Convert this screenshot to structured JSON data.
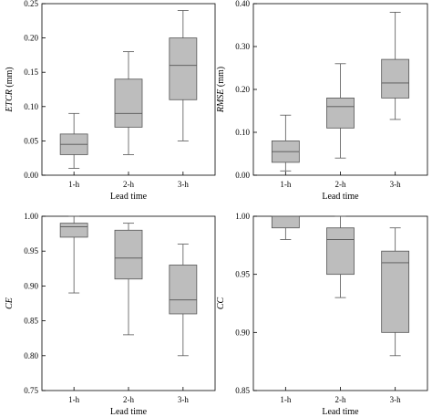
{
  "chart_data": [
    {
      "type": "box",
      "ylabel": "ETCR (mm)",
      "xlabel": "Lead time",
      "ylim": [
        0,
        0.25
      ],
      "yticks": [
        0,
        0.05,
        0.1,
        0.15,
        0.2,
        0.25
      ],
      "ytick_labels": [
        "0.00",
        "0.05",
        "0.10",
        "0.15",
        "0.20",
        "0.25"
      ],
      "categories": [
        "1-h",
        "2-h",
        "3-h"
      ],
      "boxes": [
        {
          "min": 0.01,
          "q1": 0.03,
          "median": 0.045,
          "q3": 0.06,
          "max": 0.09
        },
        {
          "min": 0.03,
          "q1": 0.07,
          "median": 0.09,
          "q3": 0.14,
          "max": 0.18
        },
        {
          "min": 0.05,
          "q1": 0.11,
          "median": 0.16,
          "q3": 0.2,
          "max": 0.24
        }
      ]
    },
    {
      "type": "box",
      "ylabel": "RMSE (mm)",
      "xlabel": "Lead time",
      "ylim": [
        0,
        0.4
      ],
      "yticks": [
        0,
        0.1,
        0.2,
        0.3,
        0.4
      ],
      "ytick_labels": [
        "0.00",
        "0.10",
        "0.20",
        "0.30",
        "0.40"
      ],
      "categories": [
        "1-h",
        "2-h",
        "3-h"
      ],
      "boxes": [
        {
          "min": 0.01,
          "q1": 0.03,
          "median": 0.055,
          "q3": 0.08,
          "max": 0.14
        },
        {
          "min": 0.04,
          "q1": 0.11,
          "median": 0.16,
          "q3": 0.18,
          "max": 0.26
        },
        {
          "min": 0.13,
          "q1": 0.18,
          "median": 0.215,
          "q3": 0.27,
          "max": 0.38
        }
      ]
    },
    {
      "type": "box",
      "ylabel": "CE",
      "xlabel": "Lead time",
      "ylim": [
        0.75,
        1.0
      ],
      "yticks": [
        0.75,
        0.8,
        0.85,
        0.9,
        0.95,
        1.0
      ],
      "ytick_labels": [
        "0.75",
        "0.80",
        "0.85",
        "0.90",
        "0.95",
        "1.00"
      ],
      "categories": [
        "1-h",
        "2-h",
        "3-h"
      ],
      "boxes": [
        {
          "min": 0.89,
          "q1": 0.97,
          "median": 0.985,
          "q3": 0.99,
          "max": 1.0
        },
        {
          "min": 0.83,
          "q1": 0.91,
          "median": 0.94,
          "q3": 0.98,
          "max": 0.99
        },
        {
          "min": 0.8,
          "q1": 0.86,
          "median": 0.88,
          "q3": 0.93,
          "max": 0.96
        }
      ]
    },
    {
      "type": "box",
      "ylabel": "CC",
      "xlabel": "Lead time",
      "ylim": [
        0.85,
        1.0
      ],
      "yticks": [
        0.85,
        0.9,
        0.95,
        1.0
      ],
      "ytick_labels": [
        "0.85",
        "0.90",
        "0.95",
        "1.00"
      ],
      "categories": [
        "1-h",
        "2-h",
        "3-h"
      ],
      "boxes": [
        {
          "min": 0.98,
          "q1": 0.99,
          "median": 1.0,
          "q3": 1.0,
          "max": 1.0
        },
        {
          "min": 0.93,
          "q1": 0.95,
          "median": 0.98,
          "q3": 0.99,
          "max": 1.0
        },
        {
          "min": 0.88,
          "q1": 0.9,
          "median": 0.96,
          "q3": 0.97,
          "max": 0.99
        }
      ]
    }
  ]
}
